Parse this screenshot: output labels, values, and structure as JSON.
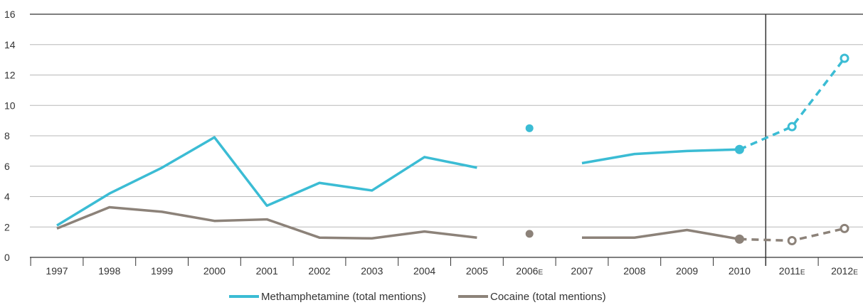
{
  "chart_data": {
    "type": "line",
    "x": [
      "1997",
      "1998",
      "1999",
      "2000",
      "2001",
      "2002",
      "2003",
      "2004",
      "2005",
      "2006",
      "2007",
      "2008",
      "2009",
      "2010",
      "2011",
      "2012"
    ],
    "x_suffix": [
      "",
      "",
      "",
      "",
      "",
      "",
      "",
      "",
      "",
      "E",
      "",
      "",
      "",
      "",
      "E",
      "E"
    ],
    "ylim": [
      0,
      16
    ],
    "yticks": [
      "0",
      "2",
      "4",
      "6",
      "8",
      "10",
      "12",
      "14",
      "16"
    ],
    "grid": true,
    "legend_position": "bottom-center",
    "split_after": "2010",
    "series": [
      {
        "name": "Methamphetamine (total mentions)",
        "color": "#3bbcd4",
        "values": [
          2.1,
          4.2,
          5.9,
          7.9,
          3.4,
          4.9,
          4.4,
          6.6,
          5.9,
          8.5,
          6.2,
          6.8,
          7.0,
          7.1,
          8.6,
          13.1
        ]
      },
      {
        "name": "Cocaine (total mentions)",
        "color": "#8c8279",
        "values": [
          1.9,
          3.3,
          3.0,
          2.4,
          2.5,
          1.3,
          1.25,
          1.7,
          1.3,
          1.55,
          1.3,
          1.3,
          1.8,
          1.2,
          1.1,
          1.9
        ]
      }
    ]
  }
}
